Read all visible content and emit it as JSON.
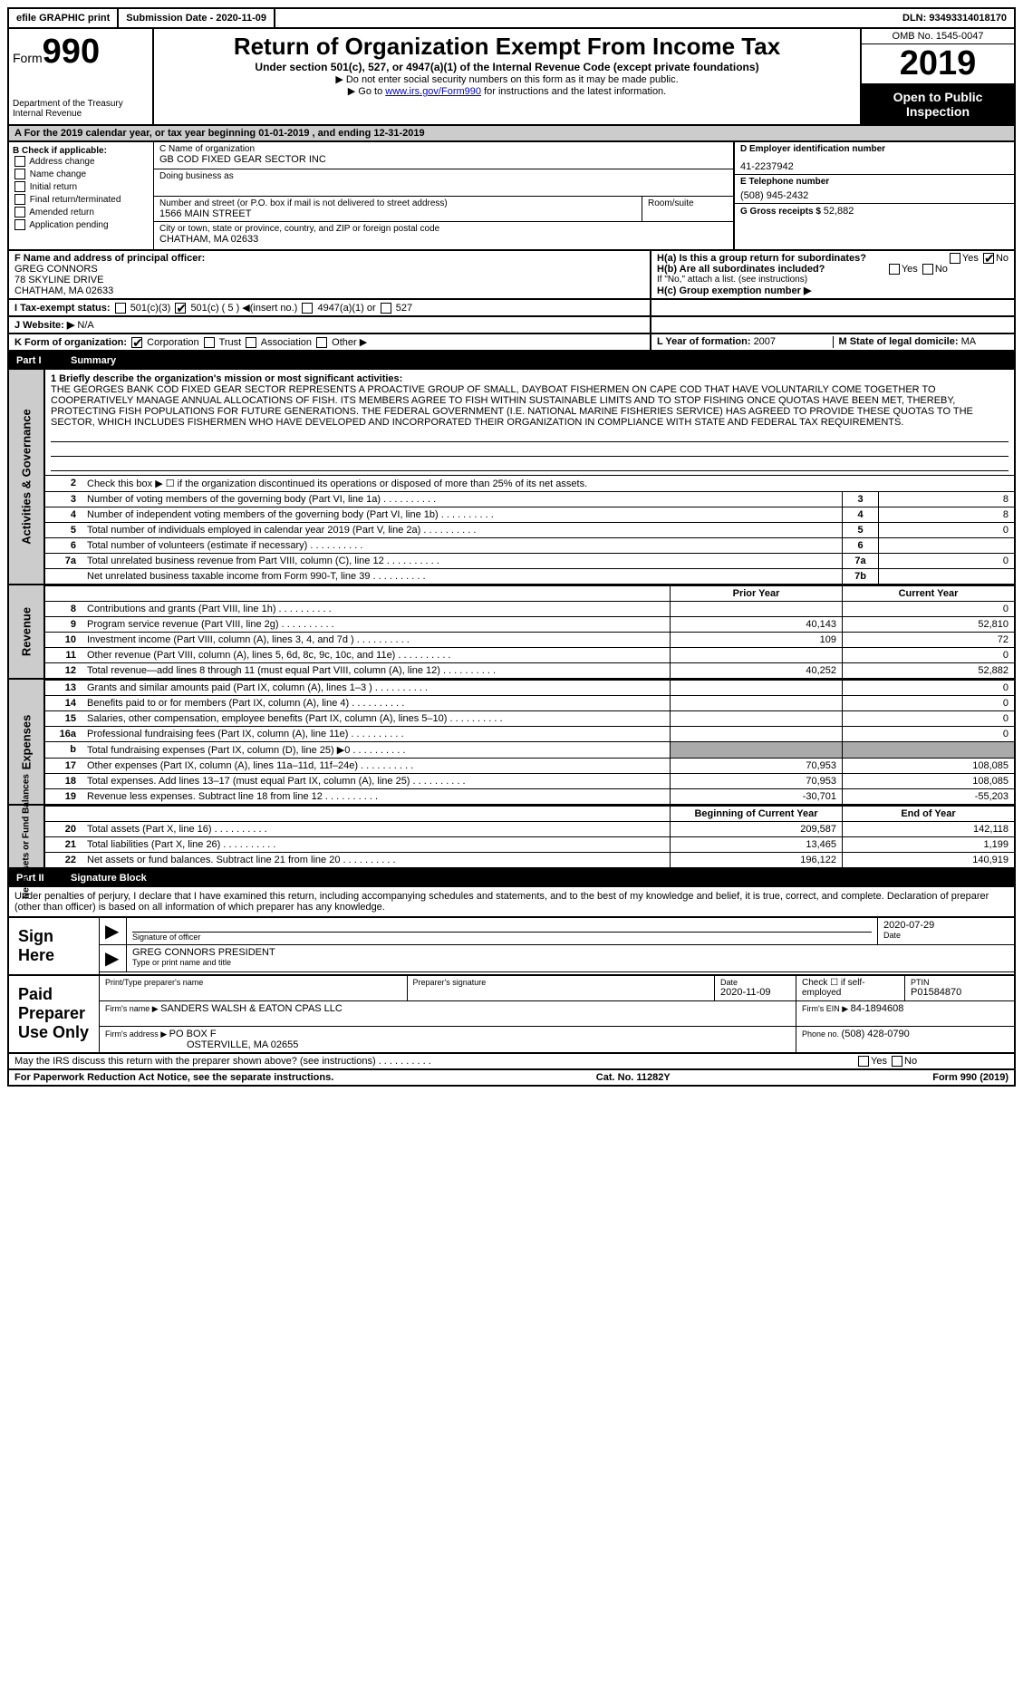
{
  "topbar": {
    "efile": "efile GRAPHIC print",
    "submission_label": "Submission Date - ",
    "submission_date": "2020-11-09",
    "dln_label": "DLN: ",
    "dln": "93493314018170"
  },
  "header": {
    "form_label": "Form",
    "form_number": "990",
    "dept": "Department of the Treasury\nInternal Revenue",
    "title": "Return of Organization Exempt From Income Tax",
    "subtitle": "Under section 501(c), 527, or 4947(a)(1) of the Internal Revenue Code (except private foundations)",
    "note1": "▶ Do not enter social security numbers on this form as it may be made public.",
    "note2_prefix": "▶ Go to ",
    "note2_link": "www.irs.gov/Form990",
    "note2_suffix": " for instructions and the latest information.",
    "omb": "OMB No. 1545-0047",
    "year": "2019",
    "inspect": "Open to Public Inspection"
  },
  "row_a": "A  For the 2019 calendar year, or tax year beginning 01-01-2019   , and ending 12-31-2019",
  "section_b": {
    "label": "B Check if applicable:",
    "items": [
      "Address change",
      "Name change",
      "Initial return",
      "Final return/terminated",
      "Amended return",
      "Application pending"
    ]
  },
  "section_c": {
    "name_label": "C Name of organization",
    "name": "GB COD FIXED GEAR SECTOR INC",
    "dba_label": "Doing business as",
    "dba": "",
    "street_label": "Number and street (or P.O. box if mail is not delivered to street address)",
    "street": "1566 MAIN STREET",
    "room_label": "Room/suite",
    "room": "",
    "city_label": "City or town, state or province, country, and ZIP or foreign postal code",
    "city": "CHATHAM, MA  02633"
  },
  "section_d": {
    "ein_label": "D Employer identification number",
    "ein": "41-2237942",
    "phone_label": "E Telephone number",
    "phone": "(508) 945-2432",
    "gross_label": "G Gross receipts $ ",
    "gross": "52,882"
  },
  "section_f": {
    "label": "F  Name and address of principal officer:",
    "name": "GREG CONNORS",
    "addr1": "78 SKYLINE DRIVE",
    "addr2": "CHATHAM, MA  02633"
  },
  "section_h": {
    "ha": "H(a)  Is this a group return for subordinates?",
    "hb": "H(b)  Are all subordinates included?",
    "hb_note": "If \"No,\" attach a list. (see instructions)",
    "hc": "H(c)  Group exemption number ▶",
    "yes": "Yes",
    "no": "No"
  },
  "tax_exempt": {
    "label": "I  Tax-exempt status:",
    "opts": [
      "501(c)(3)",
      "501(c) ( 5 ) ◀(insert no.)",
      "4947(a)(1) or",
      "527"
    ]
  },
  "website": {
    "label": "J  Website: ▶",
    "value": "N/A"
  },
  "form_org": {
    "label": "K Form of organization:",
    "opts": [
      "Corporation",
      "Trust",
      "Association",
      "Other ▶"
    ]
  },
  "year_formed": {
    "label": "L Year of formation: ",
    "value": "2007"
  },
  "domicile": {
    "label": "M State of legal domicile: ",
    "value": "MA"
  },
  "part1": {
    "num": "Part I",
    "title": "Summary"
  },
  "mission": {
    "label": "1  Briefly describe the organization's mission or most significant activities:",
    "text": "THE GEORGES BANK COD FIXED GEAR SECTOR REPRESENTS A PROACTIVE GROUP OF SMALL, DAYBOAT FISHERMEN ON CAPE COD THAT HAVE VOLUNTARILY COME TOGETHER TO COOPERATIVELY MANAGE ANNUAL ALLOCATIONS OF FISH. ITS MEMBERS AGREE TO FISH WITHIN SUSTAINABLE LIMITS AND TO STOP FISHING ONCE QUOTAS HAVE BEEN MET, THEREBY, PROTECTING FISH POPULATIONS FOR FUTURE GENERATIONS. THE FEDERAL GOVERNMENT (I.E. NATIONAL MARINE FISHERIES SERVICE) HAS AGREED TO PROVIDE THESE QUOTAS TO THE SECTOR, WHICH INCLUDES FISHERMEN WHO HAVE DEVELOPED AND INCORPORATED THEIR ORGANIZATION IN COMPLIANCE WITH STATE AND FEDERAL TAX REQUIREMENTS."
  },
  "line2": "Check this box ▶ ☐  if the organization discontinued its operations or disposed of more than 25% of its net assets.",
  "gov_rows": [
    {
      "n": "3",
      "d": "Number of voting members of the governing body (Part VI, line 1a)",
      "box": "3",
      "v": "8"
    },
    {
      "n": "4",
      "d": "Number of independent voting members of the governing body (Part VI, line 1b)",
      "box": "4",
      "v": "8"
    },
    {
      "n": "5",
      "d": "Total number of individuals employed in calendar year 2019 (Part V, line 2a)",
      "box": "5",
      "v": "0"
    },
    {
      "n": "6",
      "d": "Total number of volunteers (estimate if necessary)",
      "box": "6",
      "v": ""
    },
    {
      "n": "7a",
      "d": "Total unrelated business revenue from Part VIII, column (C), line 12",
      "box": "7a",
      "v": "0"
    },
    {
      "n": "",
      "d": "Net unrelated business taxable income from Form 990-T, line 39",
      "box": "7b",
      "v": ""
    }
  ],
  "fin_header": {
    "prior": "Prior Year",
    "curr": "Current Year"
  },
  "revenue_rows": [
    {
      "n": "8",
      "d": "Contributions and grants (Part VIII, line 1h)",
      "p": "",
      "c": "0"
    },
    {
      "n": "9",
      "d": "Program service revenue (Part VIII, line 2g)",
      "p": "40,143",
      "c": "52,810"
    },
    {
      "n": "10",
      "d": "Investment income (Part VIII, column (A), lines 3, 4, and 7d )",
      "p": "109",
      "c": "72"
    },
    {
      "n": "11",
      "d": "Other revenue (Part VIII, column (A), lines 5, 6d, 8c, 9c, 10c, and 11e)",
      "p": "",
      "c": "0"
    },
    {
      "n": "12",
      "d": "Total revenue—add lines 8 through 11 (must equal Part VIII, column (A), line 12)",
      "p": "40,252",
      "c": "52,882"
    }
  ],
  "expense_rows": [
    {
      "n": "13",
      "d": "Grants and similar amounts paid (Part IX, column (A), lines 1–3 )",
      "p": "",
      "c": "0"
    },
    {
      "n": "14",
      "d": "Benefits paid to or for members (Part IX, column (A), line 4)",
      "p": "",
      "c": "0"
    },
    {
      "n": "15",
      "d": "Salaries, other compensation, employee benefits (Part IX, column (A), lines 5–10)",
      "p": "",
      "c": "0"
    },
    {
      "n": "16a",
      "d": "Professional fundraising fees (Part IX, column (A), line 11e)",
      "p": "",
      "c": "0"
    },
    {
      "n": "b",
      "d": "Total fundraising expenses (Part IX, column (D), line 25) ▶0",
      "p": "shaded",
      "c": "shaded"
    },
    {
      "n": "17",
      "d": "Other expenses (Part IX, column (A), lines 11a–11d, 11f–24e)",
      "p": "70,953",
      "c": "108,085"
    },
    {
      "n": "18",
      "d": "Total expenses. Add lines 13–17 (must equal Part IX, column (A), line 25)",
      "p": "70,953",
      "c": "108,085"
    },
    {
      "n": "19",
      "d": "Revenue less expenses. Subtract line 18 from line 12",
      "p": "-30,701",
      "c": "-55,203"
    }
  ],
  "net_header": {
    "prior": "Beginning of Current Year",
    "curr": "End of Year"
  },
  "net_rows": [
    {
      "n": "20",
      "d": "Total assets (Part X, line 16)",
      "p": "209,587",
      "c": "142,118"
    },
    {
      "n": "21",
      "d": "Total liabilities (Part X, line 26)",
      "p": "13,465",
      "c": "1,199"
    },
    {
      "n": "22",
      "d": "Net assets or fund balances. Subtract line 21 from line 20",
      "p": "196,122",
      "c": "140,919"
    }
  ],
  "sidebars": {
    "gov": "Activities & Governance",
    "rev": "Revenue",
    "exp": "Expenses",
    "net": "Net Assets or Fund Balances"
  },
  "part2": {
    "num": "Part II",
    "title": "Signature Block"
  },
  "perjury": "Under penalties of perjury, I declare that I have examined this return, including accompanying schedules and statements, and to the best of my knowledge and belief, it is true, correct, and complete. Declaration of preparer (other than officer) is based on all information of which preparer has any knowledge.",
  "sign": {
    "here": "Sign Here",
    "sig_label": "Signature of officer",
    "date": "2020-07-29",
    "date_label": "Date",
    "name": "GREG CONNORS PRESIDENT",
    "name_label": "Type or print name and title"
  },
  "paid": {
    "title": "Paid Preparer Use Only",
    "prep_name_label": "Print/Type preparer's name",
    "prep_sig_label": "Preparer's signature",
    "prep_date_label": "Date",
    "prep_date": "2020-11-09",
    "self_emp": "Check ☐ if self-employed",
    "ptin_label": "PTIN",
    "ptin": "P01584870",
    "firm_name_label": "Firm's name    ▶ ",
    "firm_name": "SANDERS WALSH & EATON CPAS LLC",
    "firm_ein_label": "Firm's EIN ▶ ",
    "firm_ein": "84-1894608",
    "firm_addr_label": "Firm's address ▶ ",
    "firm_addr": "PO BOX F",
    "firm_addr2": "OSTERVILLE, MA  02655",
    "firm_phone_label": "Phone no. ",
    "firm_phone": "(508) 428-0790"
  },
  "discuss": "May the IRS discuss this return with the preparer shown above? (see instructions)",
  "footer": {
    "left": "For Paperwork Reduction Act Notice, see the separate instructions.",
    "mid": "Cat. No. 11282Y",
    "right": "Form 990 (2019)"
  },
  "colors": {
    "link": "#0000cc",
    "gray": "#cccccc",
    "darkgray": "#aaaaaa"
  }
}
